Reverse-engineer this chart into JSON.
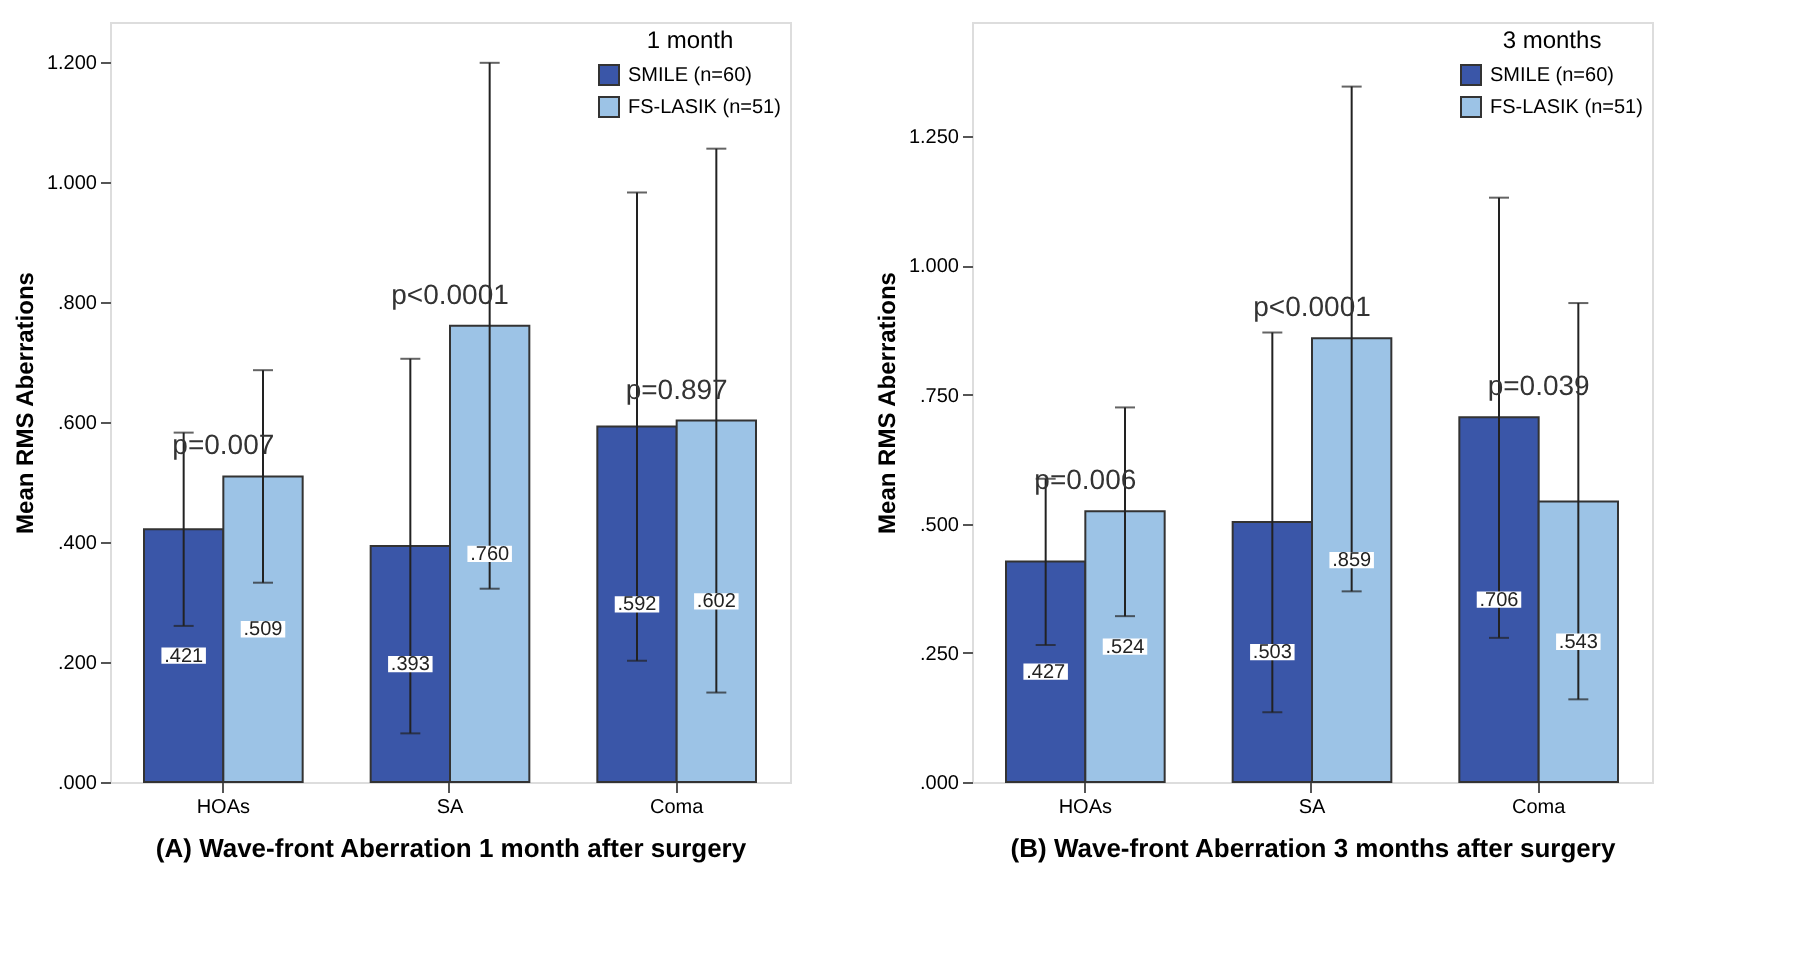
{
  "chart_data": [
    {
      "type": "bar",
      "legend_title": "1 month",
      "xlabel": "(A)   Wave-front Aberration 1 month after surgery",
      "ylabel": "Mean RMS Aberrations",
      "categories": [
        "HOAs",
        "SA",
        "Coma"
      ],
      "series": [
        {
          "name": "SMILE (n=60)",
          "color": "#3a56a8",
          "values": [
            0.421,
            0.393,
            0.592
          ],
          "value_labels": [
            ".421",
            ".393",
            ".592"
          ],
          "errors": [
            [
              0.26,
              0.582
            ],
            [
              0.081,
              0.705
            ],
            [
              0.202,
              0.982
            ]
          ]
        },
        {
          "name": "FS-LASIK (n=51)",
          "color": "#9cc3e6",
          "values": [
            0.509,
            0.76,
            0.602
          ],
          "value_labels": [
            ".509",
            ".760",
            ".602"
          ],
          "errors": [
            [
              0.332,
              0.686
            ],
            [
              0.322,
              1.198
            ],
            [
              0.149,
              1.055
            ]
          ]
        }
      ],
      "ylim": [
        0,
        1.266
      ],
      "yticks": [
        {
          "value": 0,
          "label": ".000"
        },
        {
          "value": 0.2,
          "label": ".200"
        },
        {
          "value": 0.4,
          "label": ".400"
        },
        {
          "value": 0.6,
          "label": ".600"
        },
        {
          "value": 0.8,
          "label": ".800"
        },
        {
          "value": 1.0,
          "label": "1.000"
        },
        {
          "value": 1.2,
          "label": "1.200"
        }
      ],
      "annotations": [
        "p=0.007",
        "p<0.0001",
        "p=0.897"
      ],
      "grid": false,
      "legend": "top right"
    },
    {
      "type": "bar",
      "legend_title": "3 months",
      "xlabel": "(B)   Wave-front Aberration 3 months after surgery",
      "ylabel": "Mean RMS Aberrations",
      "categories": [
        "HOAs",
        "SA",
        "Coma"
      ],
      "series": [
        {
          "name": "SMILE (n=60)",
          "color": "#3a56a8",
          "values": [
            0.427,
            0.503,
            0.706
          ],
          "value_labels": [
            ".427",
            ".503",
            ".706"
          ],
          "errors": [
            [
              0.265,
              0.587
            ],
            [
              0.135,
              0.87
            ],
            [
              0.279,
              1.131
            ]
          ]
        },
        {
          "name": "FS-LASIK (n=51)",
          "color": "#9cc3e6",
          "values": [
            0.524,
            0.859,
            0.543
          ],
          "value_labels": [
            ".524",
            ".859",
            ".543"
          ],
          "errors": [
            [
              0.321,
              0.725
            ],
            [
              0.369,
              1.346
            ],
            [
              0.16,
              0.927
            ]
          ]
        }
      ],
      "ylim": [
        0,
        1.471
      ],
      "yticks": [
        {
          "value": 0,
          "label": ".000"
        },
        {
          "value": 0.25,
          "label": ".250"
        },
        {
          "value": 0.5,
          "label": ".500"
        },
        {
          "value": 0.75,
          "label": ".750"
        },
        {
          "value": 1.0,
          "label": "1.000"
        },
        {
          "value": 1.25,
          "label": "1.250"
        }
      ],
      "annotations": [
        "p=0.006",
        "p<0.0001",
        "p=0.039"
      ],
      "grid": false,
      "legend": "top right"
    }
  ]
}
